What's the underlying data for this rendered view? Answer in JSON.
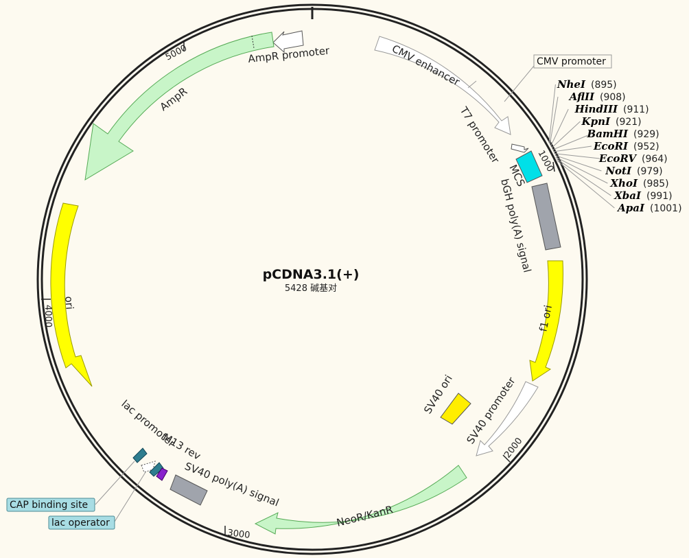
{
  "plasmid": {
    "name": "pCDNA3.1(+)",
    "size_label": "5428 碱基对"
  },
  "ticks": [
    "5000",
    "1000",
    "4000",
    "2000",
    "3000"
  ],
  "features": [
    {
      "name": "CMV enhancer",
      "color": "#ffffff",
      "stroke": "#999999"
    },
    {
      "name": "CMV promoter",
      "color": "#ffffff",
      "stroke": "#999999"
    },
    {
      "name": "T7 promoter",
      "color": "#ffffff",
      "stroke": "#999999"
    },
    {
      "name": "MCS",
      "color": "#00e0e8",
      "stroke": "#555555"
    },
    {
      "name": "bGH poly(A) signal",
      "color": "#a0a4ac",
      "stroke": "#555555"
    },
    {
      "name": "f1 ori",
      "color": "#ffff00",
      "stroke": "#999900"
    },
    {
      "name": "SV40 promoter",
      "color": "#ffffff",
      "stroke": "#999999"
    },
    {
      "name": "SV40 ori",
      "color": "#ffee00",
      "stroke": "#555555"
    },
    {
      "name": "NeoR/KanR",
      "color": "#c8f5c8",
      "stroke": "#55aa55"
    },
    {
      "name": "SV40 poly(A) signal",
      "color": "#a0a4ac",
      "stroke": "#555555"
    },
    {
      "name": "M13 rev",
      "color": "#8822cc",
      "stroke": "#440066"
    },
    {
      "name": "lac promoter",
      "color": "#2e7d8f",
      "stroke": "#114455"
    },
    {
      "name": "lac operator",
      "color": "#ffffff",
      "stroke": "#555555"
    },
    {
      "name": "CAP binding site",
      "color": "#2e7d8f",
      "stroke": "#114455"
    },
    {
      "name": "ori",
      "color": "#ffff00",
      "stroke": "#999900"
    },
    {
      "name": "AmpR",
      "color": "#c8f5c8",
      "stroke": "#55aa55"
    },
    {
      "name": "AmpR promoter",
      "color": "#ffffff",
      "stroke": "#555555"
    }
  ],
  "restriction_sites": [
    {
      "name": "NheI",
      "pos": "(895)",
      "color": "#000000"
    },
    {
      "name": "AflII",
      "pos": "(908)",
      "color": "#000000"
    },
    {
      "name": "HindIII",
      "pos": "(911)",
      "color": "#000000"
    },
    {
      "name": "KpnI",
      "pos": "(921)",
      "color": "#000000"
    },
    {
      "name": "BamHI",
      "pos": "(929)",
      "color": "#000000"
    },
    {
      "name": "EcoRI",
      "pos": "(952)",
      "color": "#000000"
    },
    {
      "name": "EcoRV",
      "pos": "(964)",
      "color": "#2e8b22"
    },
    {
      "name": "NotI",
      "pos": "(979)",
      "color": "#000000"
    },
    {
      "name": "XhoI",
      "pos": "(985)",
      "color": "#000000"
    },
    {
      "name": "XbaI",
      "pos": "(991)",
      "color": "#000000"
    },
    {
      "name": "ApaI",
      "pos": "(1001)",
      "color": "#000000"
    }
  ],
  "colors": {
    "background": "#fdfaf0",
    "backbone": "#222222",
    "label_box_fill": "#a8dde4",
    "label_box_stroke": "#4a8a94"
  }
}
